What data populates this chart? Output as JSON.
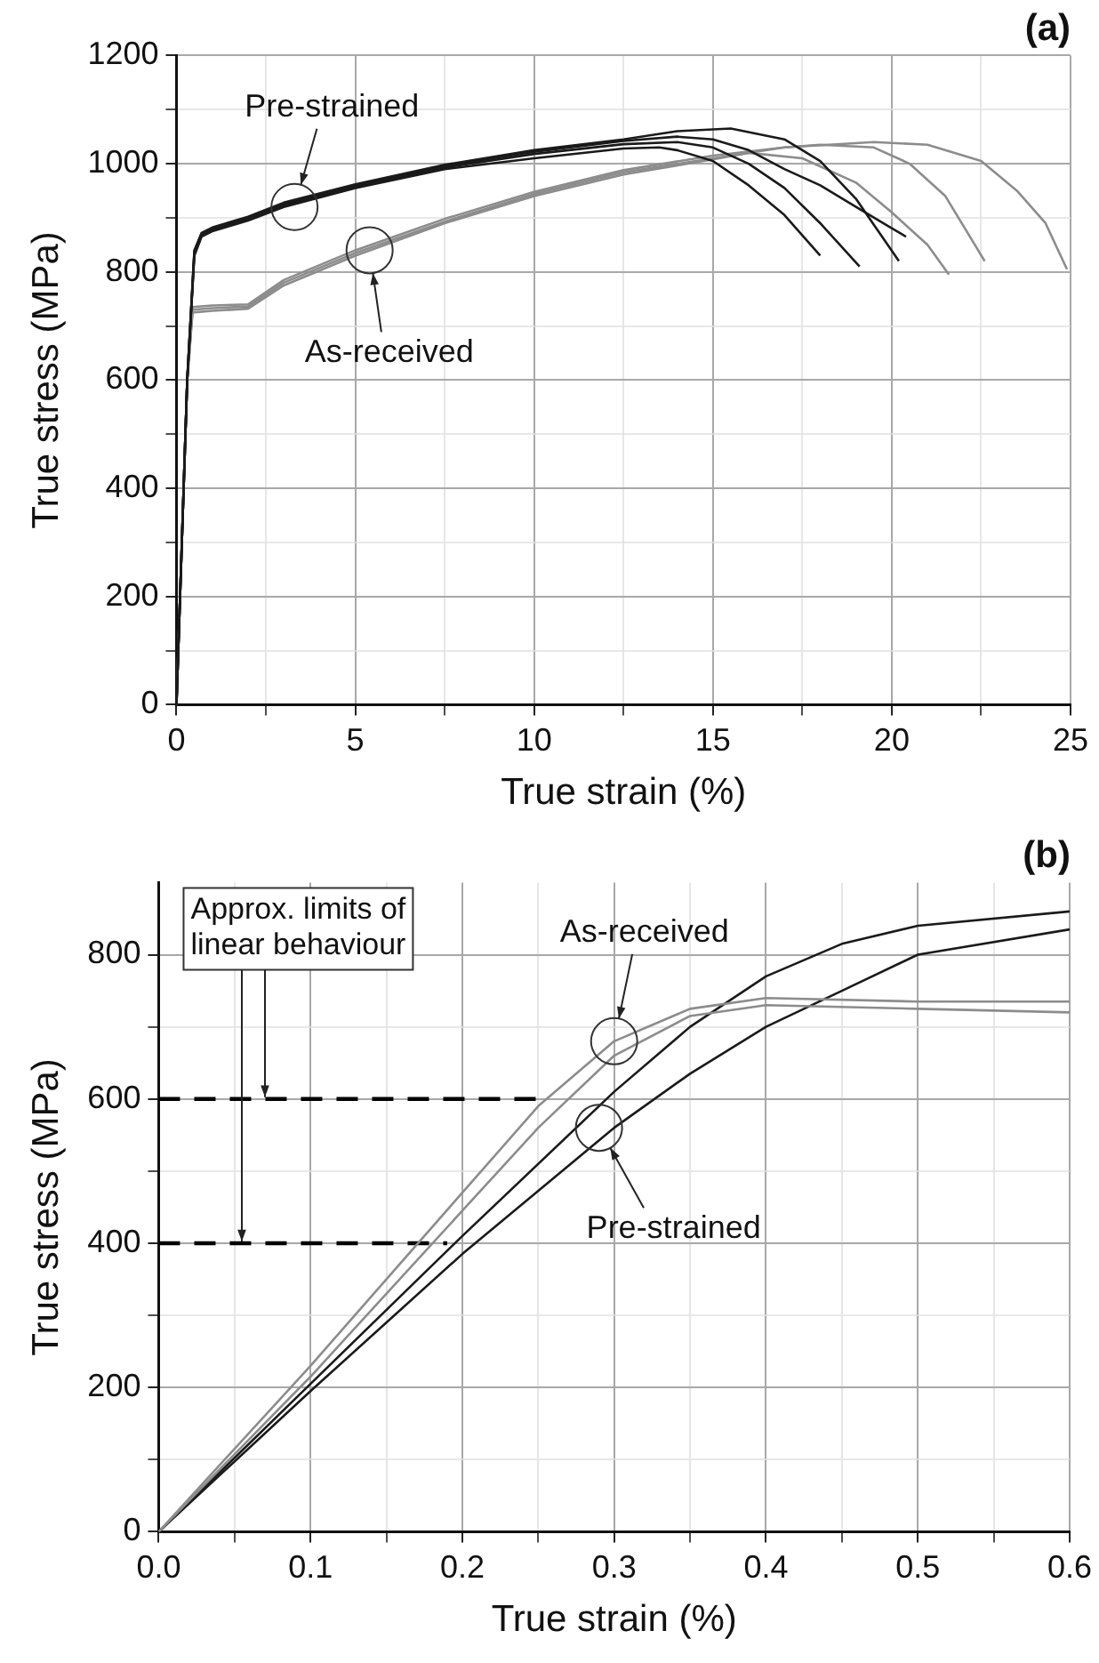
{
  "chart_data": [
    {
      "type": "line",
      "title": "(a)",
      "xlabel": "True strain (%)",
      "ylabel": "True stress (MPa)",
      "grid": true,
      "xlim": [
        0,
        25
      ],
      "xticks": [
        0,
        {
          "value": 2.5,
          "label": null
        },
        5,
        {
          "value": 7.5,
          "label": null
        },
        10,
        {
          "value": 12.5,
          "label": null
        },
        15,
        {
          "value": 17.5,
          "label": null
        },
        20,
        {
          "value": 22.5,
          "label": null
        },
        25
      ],
      "ylim": [
        0,
        1200
      ],
      "yticks": [
        0,
        {
          "value": 100,
          "label": null
        },
        200,
        {
          "value": 300,
          "label": null
        },
        400,
        {
          "value": 500,
          "label": null
        },
        600,
        {
          "value": 700,
          "label": null
        },
        800,
        {
          "value": 900,
          "label": null
        },
        1000,
        {
          "value": 1100,
          "label": null
        },
        1200
      ],
      "annotations": [
        {
          "text": "Pre-strained",
          "x": 3.3,
          "y": 920
        },
        {
          "text": "As-received",
          "x": 5.4,
          "y": 840
        }
      ],
      "series": [
        {
          "color": "#1a1a1a",
          "x": [
            0,
            0.3,
            0.5,
            0.7,
            1,
            2,
            3,
            5,
            7.5,
            10,
            12.5,
            13.5,
            14,
            15,
            16,
            17,
            18
          ],
          "values": [
            0,
            600,
            830,
            865,
            875,
            895,
            920,
            955,
            990,
            1010,
            1028,
            1030,
            1025,
            1005,
            960,
            905,
            830
          ]
        },
        {
          "color": "#1a1a1a",
          "x": [
            0,
            0.3,
            0.5,
            0.7,
            1,
            2,
            3,
            5,
            7.5,
            10,
            12.5,
            14,
            15,
            16,
            17,
            18,
            19.1
          ],
          "values": [
            0,
            600,
            835,
            868,
            878,
            898,
            922,
            958,
            993,
            1018,
            1036,
            1040,
            1030,
            1000,
            955,
            890,
            810
          ]
        },
        {
          "color": "#1a1a1a",
          "x": [
            0,
            0.3,
            0.5,
            0.7,
            1,
            2,
            3,
            5,
            7.5,
            10,
            12.5,
            14,
            15.5,
            17,
            18,
            19,
            20.2
          ],
          "values": [
            0,
            600,
            840,
            872,
            882,
            902,
            928,
            962,
            998,
            1025,
            1045,
            1060,
            1065,
            1045,
            1005,
            935,
            820
          ]
        },
        {
          "color": "#1a1a1a",
          "x": [
            0,
            0.3,
            0.5,
            0.7,
            1,
            2,
            3,
            5,
            7.5,
            10,
            12.5,
            14,
            15,
            16,
            17,
            18,
            19,
            20.4
          ],
          "values": [
            0,
            600,
            838,
            870,
            880,
            900,
            925,
            960,
            996,
            1022,
            1042,
            1050,
            1045,
            1025,
            990,
            960,
            920,
            865
          ]
        },
        {
          "color": "#8c8c8c",
          "x": [
            0,
            0.3,
            0.45,
            1,
            2,
            3,
            5,
            7.5,
            10,
            12.5,
            15,
            16,
            17.5,
            19,
            20,
            21,
            21.6
          ],
          "values": [
            0,
            600,
            725,
            728,
            732,
            775,
            830,
            890,
            940,
            980,
            1008,
            1020,
            1010,
            965,
            910,
            850,
            795
          ]
        },
        {
          "color": "#8c8c8c",
          "x": [
            0,
            0.3,
            0.45,
            1,
            2,
            3,
            5,
            7.5,
            10,
            12.5,
            15,
            17,
            18,
            19.5,
            20.5,
            21.5,
            22.6
          ],
          "values": [
            0,
            600,
            735,
            738,
            740,
            785,
            840,
            898,
            948,
            988,
            1015,
            1030,
            1035,
            1030,
            1000,
            940,
            820
          ]
        },
        {
          "color": "#8c8c8c",
          "x": [
            0,
            0.3,
            0.45,
            1,
            2,
            3,
            5,
            7.5,
            10,
            12.5,
            15,
            17,
            19.5,
            21,
            22.5,
            23.5,
            24.3,
            24.9
          ],
          "values": [
            0,
            600,
            730,
            733,
            736,
            780,
            835,
            893,
            944,
            984,
            1010,
            1030,
            1040,
            1035,
            1005,
            950,
            890,
            805
          ]
        }
      ]
    },
    {
      "type": "line",
      "title": "(b)",
      "xlabel": "True strain (%)",
      "ylabel": "True stress (MPa)",
      "grid": true,
      "xlim": [
        0,
        0.6
      ],
      "xticks": [
        {
          "value": 0,
          "label": "0.0"
        },
        {
          "value": 0.05,
          "label": null
        },
        0.1,
        {
          "value": 0.15,
          "label": null
        },
        0.2,
        {
          "value": 0.25,
          "label": null
        },
        0.3,
        {
          "value": 0.35,
          "label": null
        },
        0.4,
        {
          "value": 0.45,
          "label": null
        },
        0.5,
        {
          "value": 0.55,
          "label": null
        },
        0.6
      ],
      "ylim": [
        0,
        900
      ],
      "yticks": [
        0,
        {
          "value": 100,
          "label": null
        },
        200,
        {
          "value": 300,
          "label": null
        },
        400,
        {
          "value": 500,
          "label": null
        },
        600,
        {
          "value": 700,
          "label": null
        },
        800
      ],
      "annotations": [
        {
          "text": "Approx. limits of linear behaviour",
          "x": 0.07,
          "y": 600
        },
        {
          "text": "As-received",
          "x": 0.3,
          "y": 680
        },
        {
          "text": "Pre-strained",
          "x": 0.29,
          "y": 560
        }
      ],
      "series": [
        {
          "color": "#8c8c8c",
          "x": [
            0,
            0.1,
            0.2,
            0.25,
            0.3,
            0.35,
            0.4,
            0.5,
            0.6
          ],
          "values": [
            0,
            230,
            470,
            590,
            680,
            725,
            740,
            735,
            735
          ]
        },
        {
          "color": "#8c8c8c",
          "x": [
            0,
            0.1,
            0.2,
            0.25,
            0.3,
            0.35,
            0.4,
            0.5,
            0.6
          ],
          "values": [
            0,
            215,
            445,
            560,
            660,
            715,
            730,
            725,
            720
          ]
        },
        {
          "color": "#1a1a1a",
          "x": [
            0,
            0.1,
            0.2,
            0.3,
            0.35,
            0.4,
            0.45,
            0.5,
            0.6
          ],
          "values": [
            0,
            205,
            410,
            610,
            700,
            770,
            815,
            840,
            860
          ]
        },
        {
          "color": "#1a1a1a",
          "x": [
            0,
            0.1,
            0.2,
            0.3,
            0.35,
            0.4,
            0.45,
            0.5,
            0.6
          ],
          "values": [
            0,
            195,
            385,
            560,
            635,
            700,
            750,
            800,
            835
          ]
        },
        {
          "type": "line",
          "line_style": "dashed",
          "color": "#000000",
          "x": [
            0,
            0.25
          ],
          "values": [
            600,
            600
          ]
        },
        {
          "type": "line",
          "line_style": "dashed",
          "color": "#000000",
          "x": [
            0,
            0.19
          ],
          "values": [
            400,
            400
          ]
        }
      ]
    }
  ]
}
